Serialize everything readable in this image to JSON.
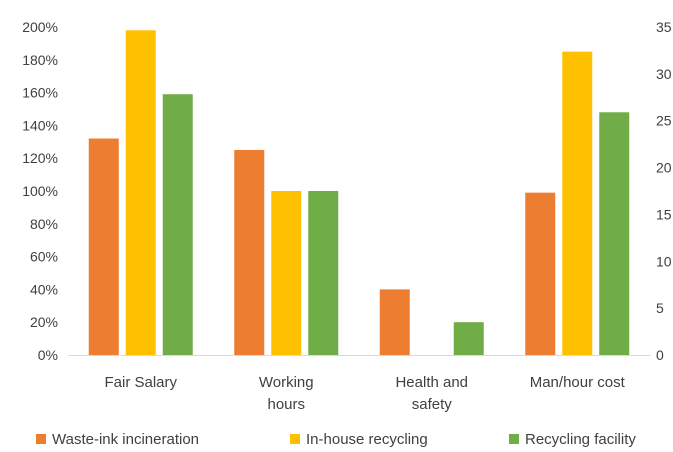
{
  "chart_data": {
    "type": "bar",
    "categories": [
      [
        "Fair Salary"
      ],
      [
        "Working",
        "hours"
      ],
      [
        "Health and",
        "safety"
      ],
      [
        "Man/hour cost"
      ]
    ],
    "series": [
      {
        "name": "Waste-ink incineration",
        "color": "#ED7D31",
        "values": [
          132,
          125,
          40,
          99
        ],
        "axis": "left"
      },
      {
        "name": "In-house recycling",
        "color": "#FFC000",
        "values": [
          198,
          100,
          0,
          185
        ],
        "axis": "left"
      },
      {
        "name": "Recycling facility",
        "color": "#70AD47",
        "values": [
          159,
          100,
          20,
          148
        ],
        "axis": "left"
      }
    ],
    "y_left": {
      "min": 0,
      "max": 200,
      "step": 20,
      "tick_labels": [
        "0%",
        "20%",
        "40%",
        "60%",
        "80%",
        "100%",
        "120%",
        "140%",
        "160%",
        "180%",
        "200%"
      ]
    },
    "y_right": {
      "min": 0,
      "max": 35,
      "step": 5,
      "tick_labels": [
        "0",
        "5",
        "10",
        "15",
        "20",
        "25",
        "30",
        "35"
      ]
    },
    "grid": false,
    "legend_position": "bottom"
  }
}
